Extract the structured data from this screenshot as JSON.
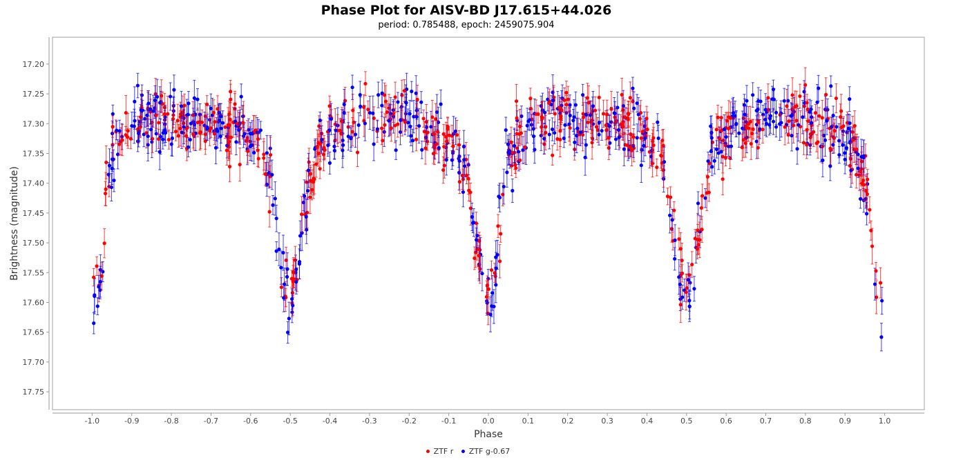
{
  "chart_data": {
    "type": "scatter",
    "title": "Phase Plot for AISV-BD J17.615+44.026",
    "subtitle": "period: 0.785488, epoch: 2459075.904",
    "xlabel": "Phase",
    "ylabel": "Brightness (magnitude)",
    "xlim": [
      -1.1,
      1.1
    ],
    "ylim": [
      17.78,
      17.155
    ],
    "y_inverted": true,
    "x_ticks": [
      "-1.0",
      "-0.9",
      "-0.8",
      "-0.7",
      "-0.6",
      "-0.5",
      "-0.4",
      "-0.3",
      "-0.2",
      "-0.1",
      "0.0",
      "0.1",
      "0.2",
      "0.3",
      "0.4",
      "0.5",
      "0.6",
      "0.7",
      "0.8",
      "0.9",
      "1.0"
    ],
    "y_ticks": [
      "17.20",
      "17.25",
      "17.30",
      "17.35",
      "17.40",
      "17.45",
      "17.50",
      "17.55",
      "17.60",
      "17.65",
      "17.70",
      "17.75"
    ],
    "grid": false,
    "legend_position": "bottom",
    "error_bar_typical": 0.02,
    "series": [
      {
        "name": "ZTF r",
        "color": "#ff0000",
        "light_curve": {
          "x": [
            0.0,
            0.02,
            0.035,
            0.05,
            0.08,
            0.12,
            0.2,
            0.3,
            0.38,
            0.43,
            0.455,
            0.47,
            0.5,
            0.53,
            0.545,
            0.57,
            0.62,
            0.7,
            0.8,
            0.88,
            0.93,
            0.955,
            0.97,
            1.0
          ],
          "y": [
            17.6,
            17.54,
            17.42,
            17.35,
            17.31,
            17.3,
            17.29,
            17.3,
            17.31,
            17.34,
            17.4,
            17.5,
            17.6,
            17.48,
            17.4,
            17.34,
            17.31,
            17.29,
            17.29,
            17.31,
            17.35,
            17.42,
            17.52,
            17.6
          ]
        },
        "scatter_magnitude": 0.045
      },
      {
        "name": "ZTF g-0.67",
        "color": "#0000ff",
        "light_curve": {
          "x": [
            0.0,
            0.02,
            0.035,
            0.05,
            0.08,
            0.12,
            0.2,
            0.3,
            0.38,
            0.43,
            0.455,
            0.47,
            0.5,
            0.53,
            0.545,
            0.57,
            0.62,
            0.7,
            0.8,
            0.88,
            0.93,
            0.955,
            0.97,
            1.0
          ],
          "y": [
            17.62,
            17.55,
            17.42,
            17.35,
            17.31,
            17.3,
            17.29,
            17.3,
            17.31,
            17.34,
            17.4,
            17.5,
            17.62,
            17.48,
            17.4,
            17.34,
            17.31,
            17.29,
            17.29,
            17.31,
            17.35,
            17.42,
            17.52,
            17.62
          ]
        },
        "scatter_magnitude": 0.05
      }
    ]
  }
}
